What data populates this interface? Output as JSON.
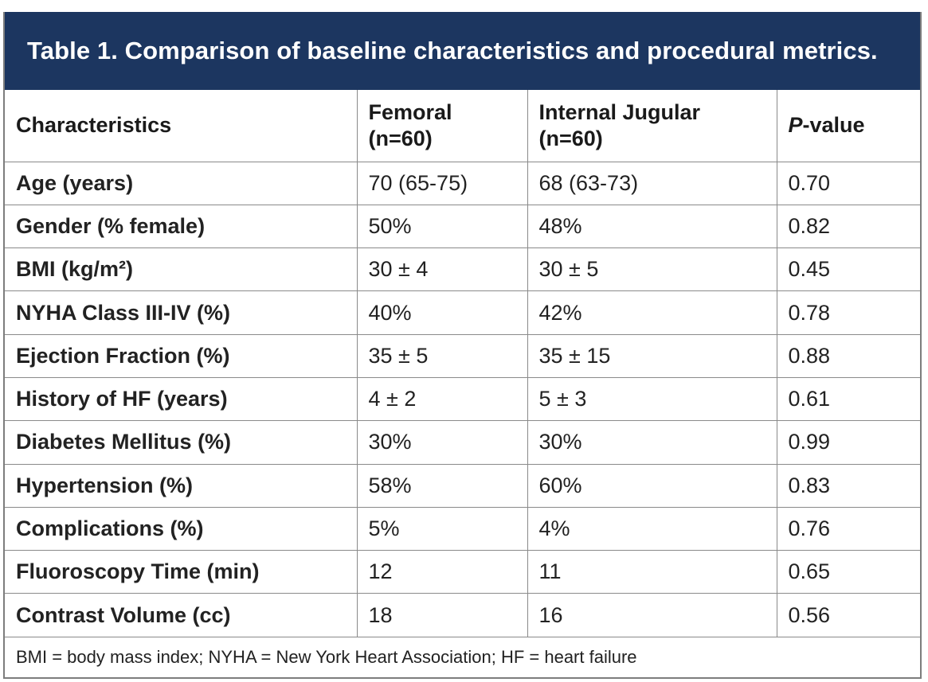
{
  "title": "Table 1. Comparison of baseline characteristics and procedural metrics.",
  "headers": {
    "characteristics": "Characteristics",
    "femoral_line1": "Femoral",
    "femoral_line2": "(n=60)",
    "jugular_line1": "Internal Jugular",
    "jugular_line2": "(n=60)",
    "p_italic": "P",
    "p_rest": "-value"
  },
  "rows": [
    {
      "label": "Age (years)",
      "femoral": "70 (65-75)",
      "jugular": "68 (63-73)",
      "p": "0.70"
    },
    {
      "label": "Gender (% female)",
      "femoral": "50%",
      "jugular": "48%",
      "p": "0.82"
    },
    {
      "label": "BMI (kg/m²)",
      "femoral": "30 ± 4",
      "jugular": "30 ± 5",
      "p": "0.45"
    },
    {
      "label": "NYHA Class III-IV (%)",
      "femoral": "40%",
      "jugular": "42%",
      "p": "0.78"
    },
    {
      "label": "Ejection Fraction (%)",
      "femoral": "35 ± 5",
      "jugular": "35 ± 15",
      "p": "0.88"
    },
    {
      "label": "History of HF (years)",
      "femoral": "4 ± 2",
      "jugular": "5 ± 3",
      "p": "0.61"
    },
    {
      "label": "Diabetes Mellitus (%)",
      "femoral": "30%",
      "jugular": "30%",
      "p": "0.99"
    },
    {
      "label": "Hypertension (%)",
      "femoral": "58%",
      "jugular": "60%",
      "p": "0.83"
    },
    {
      "label": "Complications (%)",
      "femoral": "5%",
      "jugular": "4%",
      "p": "0.76"
    },
    {
      "label": "Fluoroscopy Time (min)",
      "femoral": "12",
      "jugular": "11",
      "p": "0.65"
    },
    {
      "label": "Contrast Volume (cc)",
      "femoral": "18",
      "jugular": "16",
      "p": "0.56"
    }
  ],
  "footnote": "BMI = body mass index; NYHA = New York Heart Association; HF = heart failure",
  "colors": {
    "title_bg": "#1c3660",
    "title_text": "#ffffff",
    "border": "#8a8a8a"
  }
}
